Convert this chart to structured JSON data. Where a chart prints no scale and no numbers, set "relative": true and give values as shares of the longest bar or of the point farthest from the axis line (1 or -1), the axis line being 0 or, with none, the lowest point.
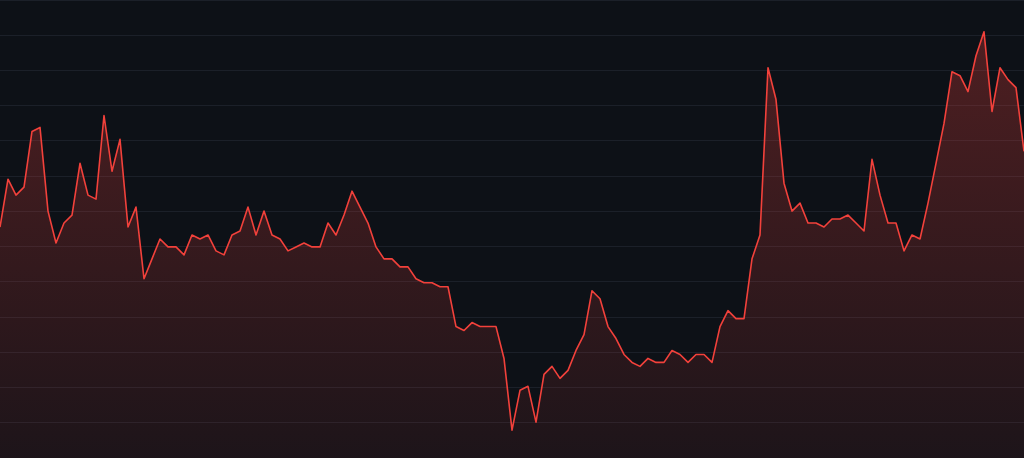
{
  "chart_data": {
    "type": "area",
    "relative": true,
    "grid": "y",
    "categories": [
      null,
      null,
      null,
      null,
      null,
      null,
      null,
      null,
      null,
      null,
      null,
      null,
      null,
      null,
      null,
      null,
      null,
      null,
      null,
      null,
      null,
      null,
      null,
      null,
      null,
      null,
      null,
      null,
      null,
      null,
      null,
      null,
      null,
      null,
      null,
      null,
      null,
      null,
      null,
      null,
      null,
      null,
      null,
      null,
      null,
      null,
      null,
      null,
      null,
      null,
      null,
      null,
      null,
      null,
      null,
      null,
      null,
      null,
      null,
      null,
      null,
      null,
      null,
      null,
      null,
      null,
      null,
      null,
      null,
      null,
      null,
      null,
      null,
      null,
      null,
      null,
      null,
      null,
      null,
      null,
      null,
      null,
      null,
      null,
      null,
      null,
      null,
      null,
      null,
      null,
      null,
      null,
      null,
      null,
      null,
      null,
      null,
      null,
      null,
      null,
      null,
      null,
      null,
      null,
      null,
      null,
      null,
      null,
      null,
      null,
      null,
      null,
      null,
      null,
      null,
      null,
      null,
      null,
      null,
      null,
      null,
      null,
      null,
      null,
      null,
      null,
      null,
      null,
      null
    ],
    "series": [
      {
        "color": "#f2413b",
        "values": [
          0.51,
          0.63,
          0.59,
          0.61,
          0.75,
          0.76,
          0.55,
          0.47,
          0.52,
          0.54,
          0.67,
          0.59,
          0.58,
          0.79,
          0.65,
          0.73,
          0.51,
          0.56,
          0.38,
          0.43,
          0.48,
          0.46,
          0.46,
          0.44,
          0.49,
          0.48,
          0.49,
          0.45,
          0.44,
          0.49,
          0.5,
          0.56,
          0.49,
          0.55,
          0.49,
          0.48,
          0.45,
          0.46,
          0.47,
          0.46,
          0.46,
          0.52,
          0.49,
          0.54,
          0.6,
          0.56,
          0.52,
          0.46,
          0.43,
          0.43,
          0.41,
          0.41,
          0.38,
          0.37,
          0.37,
          0.36,
          0.36,
          0.26,
          0.25,
          0.27,
          0.26,
          0.26,
          0.26,
          0.18,
          0,
          0.1,
          0.11,
          0.02,
          0.14,
          0.16,
          0.13,
          0.15,
          0.2,
          0.24,
          0.35,
          0.33,
          0.26,
          0.23,
          0.19,
          0.17,
          0.16,
          0.18,
          0.17,
          0.17,
          0.2,
          0.19,
          0.17,
          0.19,
          0.19,
          0.17,
          0.26,
          0.3,
          0.28,
          0.28,
          0.43,
          0.49,
          0.91,
          0.83,
          0.62,
          0.55,
          0.57,
          0.52,
          0.52,
          0.51,
          0.53,
          0.53,
          0.54,
          0.52,
          0.5,
          0.68,
          0.59,
          0.52,
          0.52,
          0.45,
          0.49,
          0.48,
          0.57,
          0.67,
          0.77,
          0.9,
          0.89,
          0.85,
          0.94,
          1,
          0.8,
          0.91,
          0.88,
          0.86,
          0.7
        ]
      }
    ]
  }
}
